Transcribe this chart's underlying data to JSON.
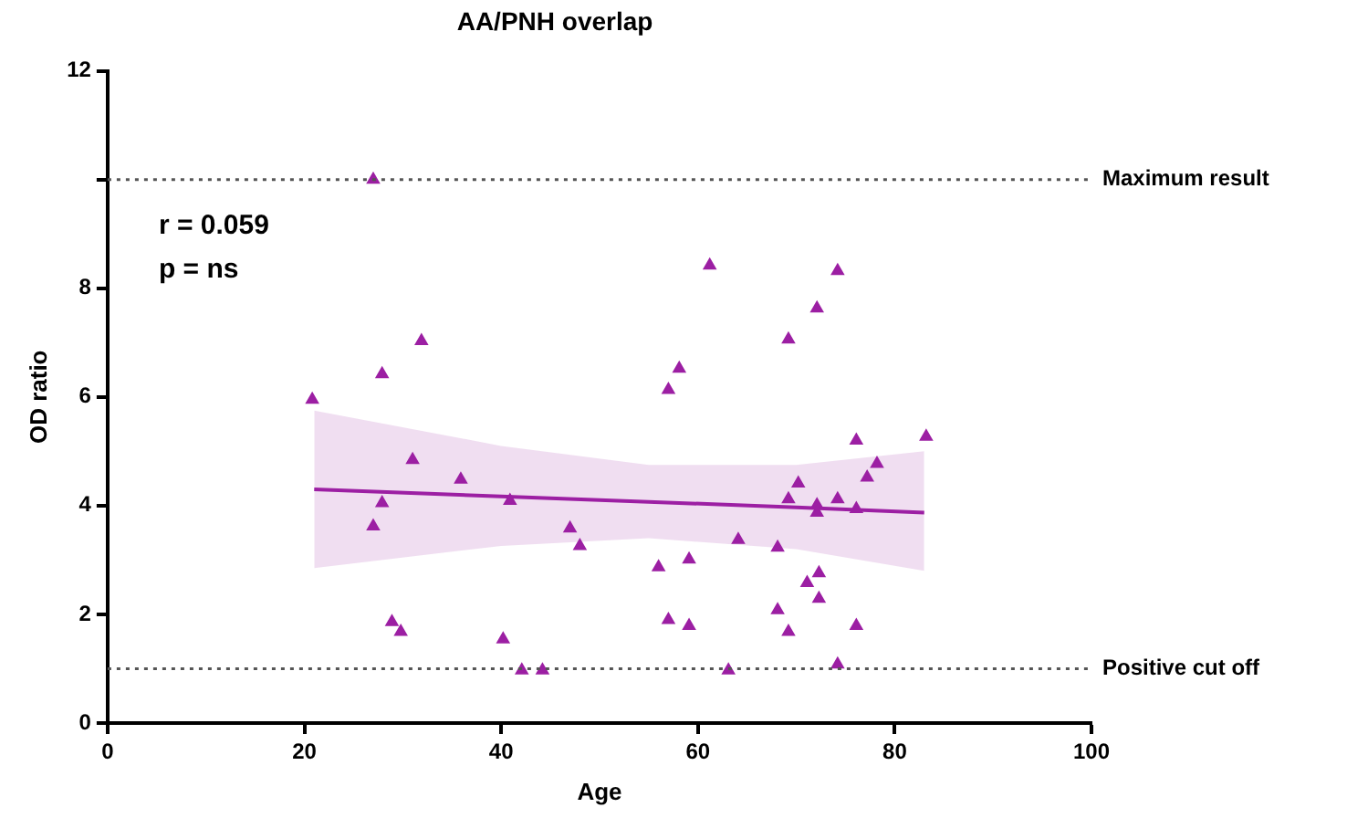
{
  "chart_data": {
    "type": "scatter",
    "title": "AA/PNH overlap",
    "xlabel": "Age",
    "ylabel": "OD ratio",
    "xlim": [
      0,
      100
    ],
    "xticks": [
      0,
      20,
      40,
      60,
      80,
      100
    ],
    "ylim": [
      0,
      12
    ],
    "yticks": [
      0,
      2,
      4,
      6,
      8,
      {
        "value": 10,
        "label": null
      },
      12
    ],
    "grid": false,
    "legend": false,
    "series": [
      {
        "marker": "triangle",
        "color": "#9c1fa3",
        "x": [
          20.8,
          27.0,
          27.9,
          31.9,
          31.0,
          35.9,
          27.9,
          27.0,
          40.9,
          47.0,
          48.0,
          28.9,
          29.8,
          40.2,
          42.1,
          44.2,
          61.2,
          74.2,
          72.1,
          69.2,
          58.1,
          57.0,
          76.1,
          83.2,
          78.2,
          77.2,
          70.2,
          69.2,
          72.1,
          72.1,
          74.2,
          76.1,
          64.1,
          68.1,
          56.0,
          59.1,
          72.3,
          71.1,
          72.3,
          68.1,
          57.0,
          59.1,
          69.2,
          76.1,
          63.1,
          74.2
        ],
        "values": [
          5.95,
          10.0,
          6.42,
          7.03,
          4.84,
          4.48,
          4.05,
          3.62,
          4.09,
          3.58,
          3.26,
          1.86,
          1.68,
          1.54,
          0.97,
          0.97,
          8.42,
          8.32,
          7.63,
          7.06,
          6.52,
          6.13,
          5.2,
          5.27,
          4.77,
          4.52,
          4.41,
          4.12,
          4.01,
          3.87,
          4.12,
          3.94,
          3.37,
          3.23,
          2.87,
          3.01,
          2.76,
          2.58,
          2.29,
          2.08,
          1.9,
          1.79,
          1.68,
          1.79,
          0.97,
          1.08
        ]
      },
      {
        "type": "line",
        "marker": "none",
        "color": "#9c1fa3",
        "x": [
          21,
          40,
          55,
          70,
          83
        ],
        "values": [
          4.3,
          4.17,
          4.07,
          3.97,
          3.87
        ],
        "lower": [
          2.85,
          3.26,
          3.4,
          3.2,
          2.8
        ],
        "upper": [
          5.75,
          5.1,
          4.75,
          4.75,
          5.0
        ]
      }
    ],
    "ref_lines": [
      {
        "axis": "y",
        "value": 10,
        "label": "Maximum result",
        "line_style": "dotted"
      },
      {
        "axis": "y",
        "value": 1,
        "label": "Positive cut off",
        "line_style": "dotted"
      }
    ],
    "annotations": [
      "r = 0.059",
      "p = ns"
    ]
  }
}
